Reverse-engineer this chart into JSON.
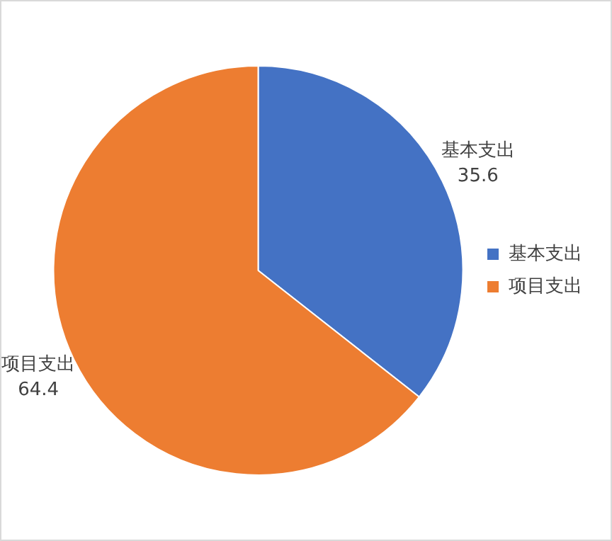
{
  "chart_data": {
    "type": "pie",
    "categories": [
      "基本支出",
      "项目支出"
    ],
    "values": [
      35.6,
      64.4
    ],
    "colors": [
      "#4472c4",
      "#ed7d31"
    ],
    "data_labels": true,
    "legend": "right"
  }
}
